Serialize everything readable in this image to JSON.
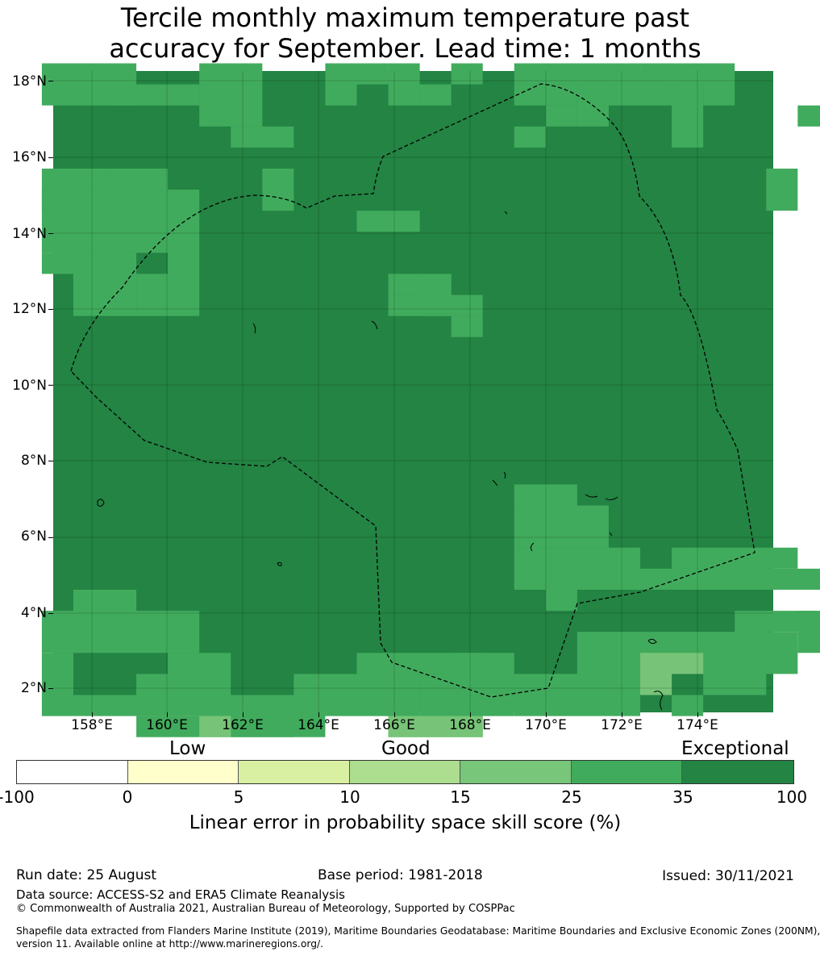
{
  "title_line1": "Tercile monthly maximum temperature past",
  "title_line2": "accuracy for September. Lead time: 1 months",
  "map": {
    "lat_labels": [
      "18°N",
      "16°N",
      "14°N",
      "12°N",
      "10°N",
      "8°N",
      "6°N",
      "4°N",
      "2°N"
    ],
    "lon_labels": [
      "158°E",
      "160°E",
      "162°E",
      "164°E",
      "166°E",
      "168°E",
      "170°E",
      "172°E",
      "174°E"
    ],
    "lat_range": [
      1.36,
      18.32
    ],
    "lon_range": [
      157.0,
      176.05
    ],
    "grid_cell_deg": 0.833,
    "skill_colors": {
      "very_good_15_25": "#77c478",
      "excellent_25_35": "#41ab5d",
      "exceptional_35_100": "#238443"
    }
  },
  "legend": {
    "categories": [
      "Low",
      "Good",
      "Exceptional"
    ],
    "tick_labels": [
      "-100",
      "0",
      "5",
      "10",
      "15",
      "25",
      "35",
      "100"
    ],
    "colors": [
      "#ffffff",
      "#ffffcc",
      "#d9f0a3",
      "#addd8e",
      "#78c679",
      "#41ab5d",
      "#238443"
    ],
    "title": "Linear error in probability space skill score (%)"
  },
  "footer": {
    "run_date": "Run date: 25 August",
    "base_period": "Base period: 1981-2018",
    "issued": "Issued: 30/11/2021",
    "data_source": "Data source: ACCESS-S2 and ERA5 Climate Reanalysis",
    "copyright": "© Commonwealth of Australia 2021, Australian Bureau of Meteorology, Supported by COSPPac",
    "shapefile_line1": "Shapefile data extracted from Flanders Marine Institute (2019), Maritime Boundaries Geodatabase: Maritime Boundaries and Exclusive Economic Zones (200NM),",
    "shapefile_line2": "version 11. Available online at http://www.marineregions.org/."
  }
}
